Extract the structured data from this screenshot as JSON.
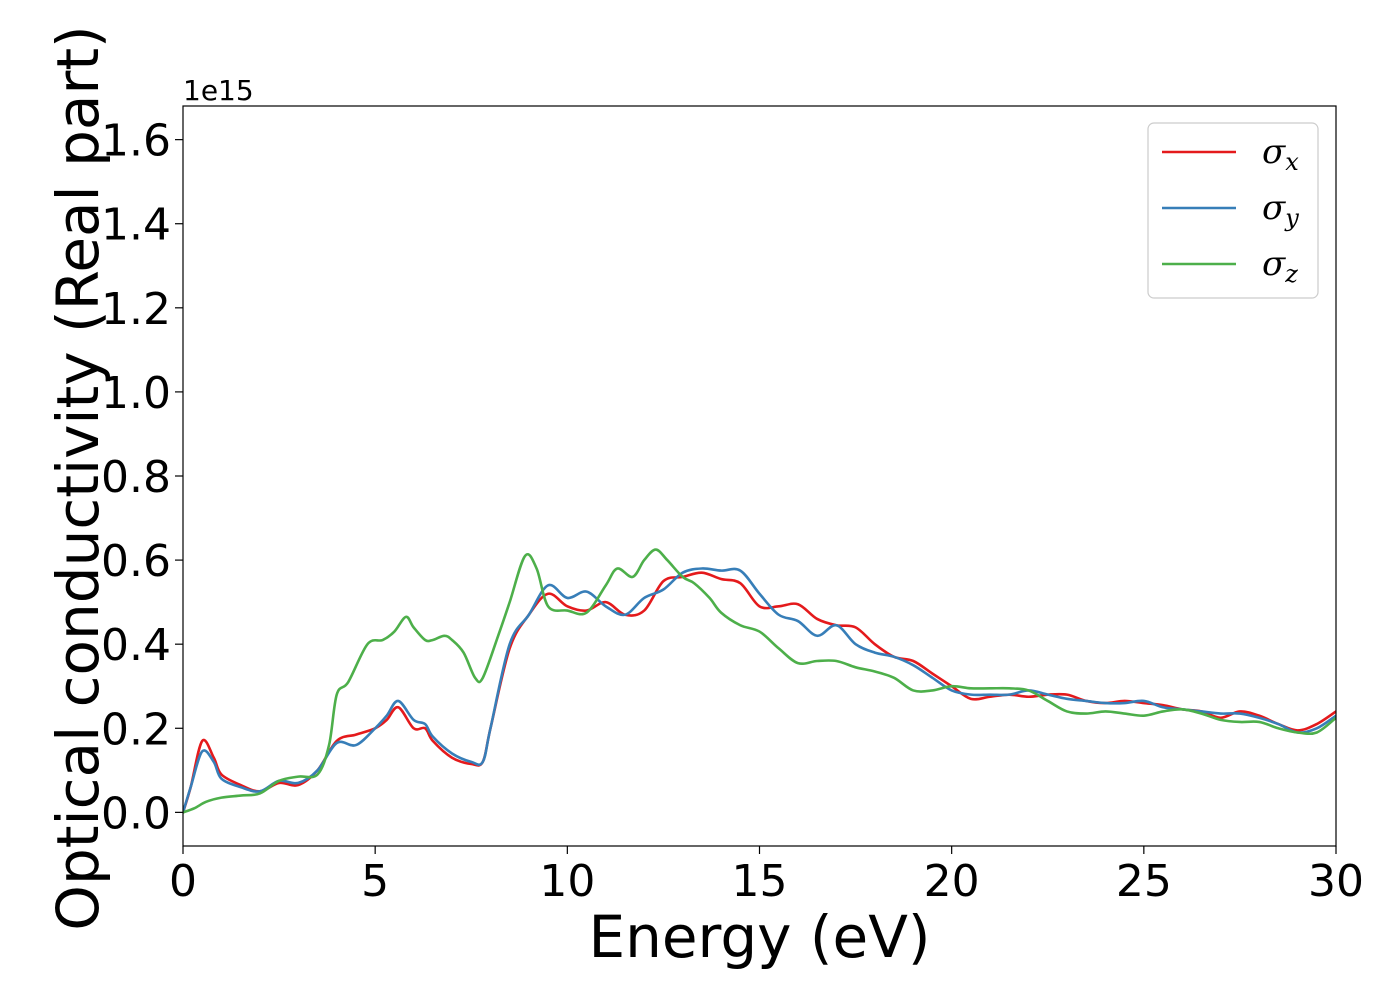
{
  "chart_data": {
    "type": "line",
    "title": "",
    "xlabel": "Energy (eV)",
    "ylabel": "Optical conductivity (Real part)",
    "y_offset_label": "1e15",
    "xlim": [
      0,
      30
    ],
    "ylim": [
      -0.08,
      1.68
    ],
    "xticks": [
      0,
      5,
      10,
      15,
      20,
      25,
      30
    ],
    "xtick_labels": [
      "0",
      "5",
      "10",
      "15",
      "20",
      "25",
      "30"
    ],
    "yticks": [
      0.0,
      0.2,
      0.4,
      0.6,
      0.8,
      1.0,
      1.2,
      1.4,
      1.6
    ],
    "ytick_labels": [
      "0.0",
      "0.2",
      "0.4",
      "0.6",
      "0.8",
      "1.0",
      "1.2",
      "1.4",
      "1.6"
    ],
    "grid": false,
    "legend_position": "top-right",
    "series": [
      {
        "name": "σx",
        "symbol": "σ",
        "subscript": "x",
        "color": "#e41a1c",
        "x": [
          0,
          0.2,
          0.5,
          0.8,
          1.0,
          1.5,
          2.0,
          2.5,
          3.0,
          3.5,
          4.0,
          4.5,
          5.0,
          5.3,
          5.6,
          6.0,
          6.3,
          6.5,
          7.0,
          7.5,
          7.8,
          8.0,
          8.5,
          9.0,
          9.5,
          10.0,
          10.5,
          11.0,
          11.5,
          12.0,
          12.5,
          13.0,
          13.5,
          14.0,
          14.5,
          15.0,
          15.5,
          16.0,
          16.5,
          17.0,
          17.5,
          18.0,
          18.5,
          19.0,
          19.5,
          20.0,
          20.5,
          21.0,
          21.5,
          22.0,
          22.5,
          23.0,
          23.5,
          24.0,
          24.5,
          25.0,
          25.5,
          26.0,
          26.5,
          27.0,
          27.5,
          28.0,
          28.5,
          29.0,
          29.5,
          30.0
        ],
        "y": [
          0.0,
          0.06,
          0.17,
          0.13,
          0.09,
          0.065,
          0.05,
          0.07,
          0.065,
          0.1,
          0.17,
          0.185,
          0.2,
          0.22,
          0.25,
          0.2,
          0.2,
          0.17,
          0.13,
          0.115,
          0.12,
          0.2,
          0.39,
          0.47,
          0.52,
          0.49,
          0.48,
          0.5,
          0.47,
          0.48,
          0.55,
          0.56,
          0.57,
          0.555,
          0.545,
          0.49,
          0.49,
          0.495,
          0.46,
          0.445,
          0.44,
          0.4,
          0.37,
          0.36,
          0.33,
          0.3,
          0.27,
          0.275,
          0.28,
          0.275,
          0.28,
          0.28,
          0.265,
          0.26,
          0.265,
          0.26,
          0.255,
          0.245,
          0.24,
          0.225,
          0.24,
          0.23,
          0.21,
          0.195,
          0.21,
          0.24
        ]
      },
      {
        "name": "σy",
        "symbol": "σ",
        "subscript": "y",
        "color": "#377eb8",
        "x": [
          0,
          0.2,
          0.5,
          0.8,
          1.0,
          1.5,
          2.0,
          2.5,
          3.0,
          3.5,
          4.0,
          4.5,
          5.0,
          5.3,
          5.6,
          6.0,
          6.3,
          6.5,
          7.0,
          7.5,
          7.8,
          8.0,
          8.5,
          9.0,
          9.5,
          10.0,
          10.5,
          11.0,
          11.5,
          12.0,
          12.5,
          13.0,
          13.5,
          14.0,
          14.5,
          15.0,
          15.5,
          16.0,
          16.5,
          17.0,
          17.5,
          18.0,
          18.5,
          19.0,
          19.5,
          20.0,
          20.5,
          21.0,
          21.5,
          22.0,
          22.5,
          23.0,
          23.5,
          24.0,
          24.5,
          25.0,
          25.5,
          26.0,
          26.5,
          27.0,
          27.5,
          28.0,
          28.5,
          29.0,
          29.5,
          30.0
        ],
        "y": [
          0.0,
          0.06,
          0.145,
          0.12,
          0.08,
          0.06,
          0.05,
          0.075,
          0.07,
          0.1,
          0.165,
          0.16,
          0.2,
          0.23,
          0.265,
          0.22,
          0.21,
          0.18,
          0.14,
          0.12,
          0.12,
          0.2,
          0.4,
          0.47,
          0.54,
          0.51,
          0.525,
          0.49,
          0.47,
          0.51,
          0.53,
          0.57,
          0.58,
          0.575,
          0.575,
          0.52,
          0.47,
          0.455,
          0.42,
          0.445,
          0.4,
          0.38,
          0.37,
          0.35,
          0.32,
          0.29,
          0.28,
          0.28,
          0.28,
          0.29,
          0.28,
          0.27,
          0.265,
          0.26,
          0.26,
          0.265,
          0.25,
          0.245,
          0.24,
          0.235,
          0.235,
          0.225,
          0.21,
          0.19,
          0.2,
          0.23
        ]
      },
      {
        "name": "σz",
        "symbol": "σ",
        "subscript": "z",
        "color": "#4daf4a",
        "x": [
          0,
          0.3,
          0.6,
          1.0,
          1.5,
          2.0,
          2.5,
          3.0,
          3.5,
          3.8,
          4.0,
          4.3,
          4.8,
          5.2,
          5.5,
          5.8,
          6.0,
          6.3,
          6.5,
          6.8,
          7.0,
          7.3,
          7.6,
          7.8,
          8.2,
          8.5,
          8.9,
          9.2,
          9.5,
          10.0,
          10.5,
          11.0,
          11.3,
          11.7,
          12.0,
          12.3,
          12.6,
          13.0,
          13.3,
          13.7,
          14.0,
          14.5,
          15.0,
          15.5,
          16.0,
          16.5,
          17.0,
          17.5,
          18.0,
          18.5,
          19.0,
          19.5,
          20.0,
          20.5,
          21.0,
          21.5,
          22.0,
          22.5,
          23.0,
          23.5,
          24.0,
          24.5,
          25.0,
          25.5,
          26.0,
          26.5,
          27.0,
          27.5,
          28.0,
          28.5,
          29.0,
          29.5,
          30.0
        ],
        "y": [
          0.0,
          0.01,
          0.025,
          0.035,
          0.04,
          0.045,
          0.075,
          0.085,
          0.09,
          0.16,
          0.28,
          0.31,
          0.4,
          0.41,
          0.43,
          0.465,
          0.44,
          0.41,
          0.41,
          0.42,
          0.41,
          0.38,
          0.32,
          0.32,
          0.42,
          0.5,
          0.61,
          0.58,
          0.49,
          0.48,
          0.475,
          0.54,
          0.58,
          0.56,
          0.6,
          0.625,
          0.6,
          0.56,
          0.545,
          0.51,
          0.475,
          0.445,
          0.43,
          0.39,
          0.355,
          0.36,
          0.36,
          0.345,
          0.335,
          0.32,
          0.29,
          0.29,
          0.3,
          0.295,
          0.295,
          0.295,
          0.29,
          0.265,
          0.24,
          0.235,
          0.24,
          0.235,
          0.23,
          0.24,
          0.245,
          0.235,
          0.22,
          0.215,
          0.215,
          0.2,
          0.19,
          0.19,
          0.225
        ]
      }
    ]
  }
}
